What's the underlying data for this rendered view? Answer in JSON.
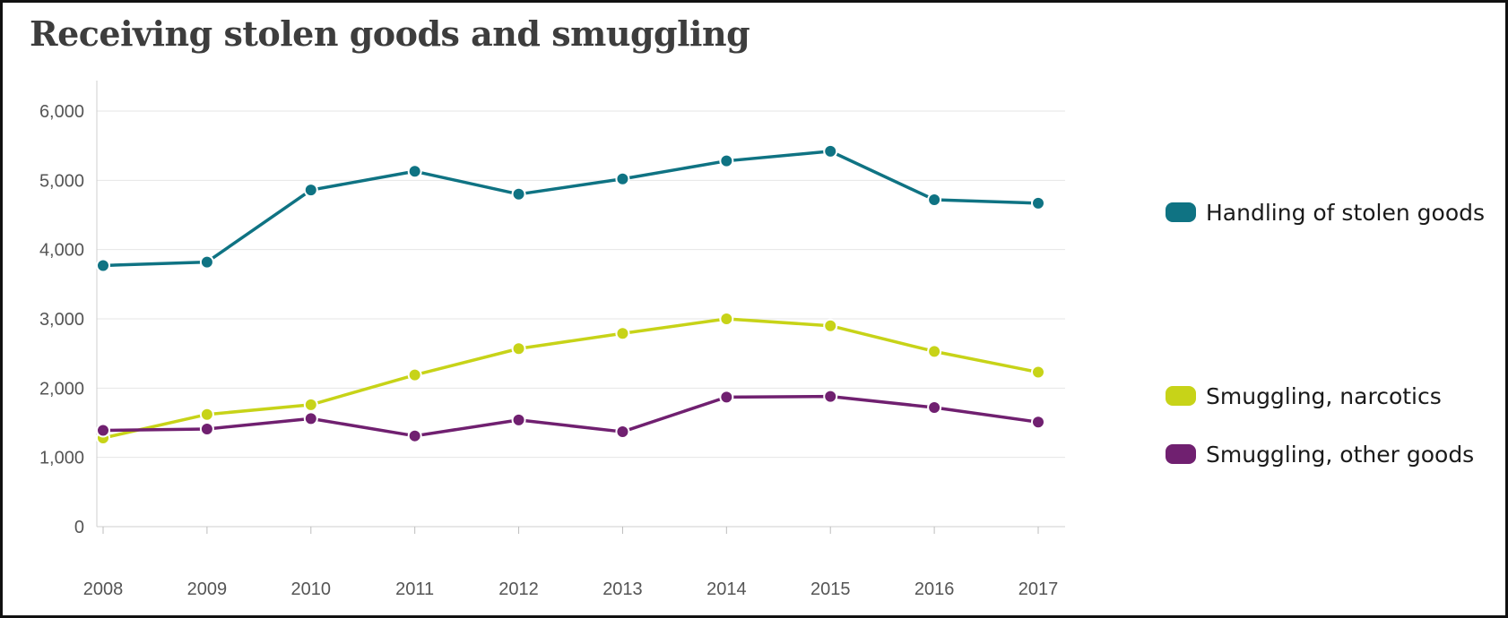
{
  "chart_data": {
    "type": "line",
    "title": "Receiving stolen goods and smuggling",
    "x": [
      2008,
      2009,
      2010,
      2011,
      2012,
      2013,
      2014,
      2015,
      2016,
      2017
    ],
    "x_tick_labels": [
      "2008",
      "2009",
      "2010",
      "2011",
      "2012",
      "2013",
      "2014",
      "2015",
      "2016",
      "2017"
    ],
    "ylim": [
      0,
      6300
    ],
    "y_ticks": [
      0,
      1000,
      2000,
      3000,
      4000,
      5000,
      6000
    ],
    "y_tick_labels": [
      "0",
      "1,000",
      "2,000",
      "3,000",
      "4,000",
      "5,000",
      "6,000"
    ],
    "grid": true,
    "legend_position": "right",
    "series": [
      {
        "name": "Handling of stolen goods",
        "color": "#0f7383",
        "values": [
          3770,
          3820,
          4860,
          5130,
          4800,
          5020,
          5280,
          5420,
          4720,
          4670
        ]
      },
      {
        "name": "Smuggling, narcotics",
        "color": "#c7d318",
        "values": [
          1280,
          1620,
          1760,
          2190,
          2570,
          2790,
          3000,
          2900,
          2530,
          2230
        ]
      },
      {
        "name": "Smuggling, other goods",
        "color": "#702070",
        "values": [
          1390,
          1410,
          1560,
          1310,
          1540,
          1370,
          1870,
          1880,
          1720,
          1510
        ]
      }
    ]
  }
}
